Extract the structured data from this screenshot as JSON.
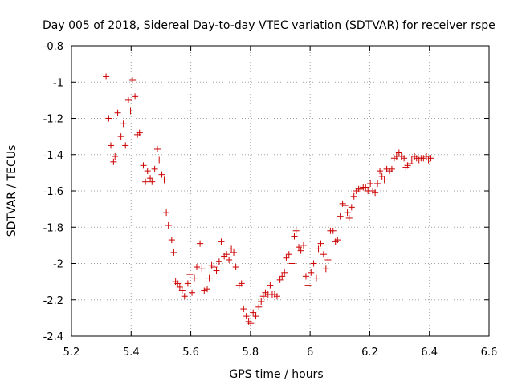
{
  "chart_data": {
    "type": "scatter",
    "title": "Day 005 of 2018, Sidereal Day-to-day VTEC variation (SDTVAR) for receiver rspe",
    "xlabel": "GPS time / hours",
    "ylabel": "SDTVAR / TECUs",
    "xlim": [
      5.2,
      6.6
    ],
    "ylim": [
      -2.4,
      -0.8
    ],
    "xticks": [
      5.2,
      5.4,
      5.6,
      5.8,
      6.0,
      6.2,
      6.4,
      6.6
    ],
    "xtick_labels": [
      "5.2",
      "5.4",
      "5.6",
      "5.8",
      "6",
      "6.2",
      "6.4",
      "6.6"
    ],
    "yticks": [
      -0.8,
      -1.0,
      -1.2,
      -1.4,
      -1.6,
      -1.8,
      -2.0,
      -2.2,
      -2.4
    ],
    "ytick_labels": [
      "-0.8",
      "-1",
      "-1.2",
      "-1.4",
      "-1.6",
      "-1.8",
      "-2",
      "-2.2",
      "-2.4"
    ],
    "grid": true,
    "marker": "+",
    "color": "#cc0000",
    "series": [
      {
        "name": "SDTVAR",
        "x": [
          5.316,
          5.325,
          5.332,
          5.341,
          5.346,
          5.355,
          5.366,
          5.374,
          5.381,
          5.391,
          5.398,
          5.405,
          5.413,
          5.421,
          5.428,
          5.441,
          5.448,
          5.455,
          5.464,
          5.47,
          5.479,
          5.488,
          5.494,
          5.503,
          5.511,
          5.518,
          5.525,
          5.536,
          5.543,
          5.549,
          5.556,
          5.563,
          5.571,
          5.579,
          5.59,
          5.597,
          5.604,
          5.612,
          5.62,
          5.631,
          5.637,
          5.645,
          5.655,
          5.662,
          5.67,
          5.678,
          5.686,
          5.695,
          5.702,
          5.712,
          5.72,
          5.728,
          5.736,
          5.744,
          5.751,
          5.762,
          5.77,
          5.777,
          5.786,
          5.794,
          5.801,
          5.809,
          5.818,
          5.828,
          5.836,
          5.843,
          5.85,
          5.859,
          5.866,
          5.873,
          5.881,
          5.889,
          5.899,
          5.906,
          5.914,
          5.92,
          5.929,
          5.939,
          5.947,
          5.953,
          5.962,
          5.969,
          5.978,
          5.986,
          5.993,
          6.003,
          6.012,
          6.021,
          6.028,
          6.036,
          6.045,
          6.053,
          6.06,
          6.068,
          6.077,
          6.085,
          6.092,
          6.101,
          6.109,
          6.117,
          6.125,
          6.131,
          6.139,
          6.147,
          6.155,
          6.163,
          6.17,
          6.178,
          6.186,
          6.194,
          6.202,
          6.21,
          6.218,
          6.226,
          6.234,
          6.241,
          6.249,
          6.257,
          6.266,
          6.274,
          6.282,
          6.29,
          6.298,
          6.306,
          6.315,
          6.321,
          6.327,
          6.335,
          6.341,
          6.35,
          6.357,
          6.365,
          6.372,
          6.38,
          6.39,
          6.397,
          6.405
        ],
        "y": [
          -0.97,
          -1.2,
          -1.35,
          -1.44,
          -1.41,
          -1.17,
          -1.3,
          -1.23,
          -1.35,
          -1.1,
          -1.16,
          -0.99,
          -1.08,
          -1.29,
          -1.28,
          -1.46,
          -1.55,
          -1.49,
          -1.53,
          -1.55,
          -1.48,
          -1.37,
          -1.43,
          -1.51,
          -1.54,
          -1.72,
          -1.79,
          -1.87,
          -1.94,
          -2.1,
          -2.11,
          -2.13,
          -2.15,
          -2.18,
          -2.11,
          -2.06,
          -2.16,
          -2.08,
          -2.02,
          -1.89,
          -2.03,
          -2.15,
          -2.14,
          -2.08,
          -2.01,
          -2.02,
          -2.04,
          -1.99,
          -1.88,
          -1.96,
          -1.95,
          -1.98,
          -1.92,
          -1.94,
          -2.02,
          -2.12,
          -2.11,
          -2.25,
          -2.29,
          -2.32,
          -2.33,
          -2.27,
          -2.29,
          -2.24,
          -2.21,
          -2.18,
          -2.16,
          -2.17,
          -2.12,
          -2.17,
          -2.17,
          -2.18,
          -2.09,
          -2.07,
          -2.05,
          -1.97,
          -1.95,
          -2.0,
          -1.85,
          -1.82,
          -1.91,
          -1.93,
          -1.9,
          -2.07,
          -2.12,
          -2.05,
          -2.0,
          -2.08,
          -1.92,
          -1.89,
          -1.95,
          -2.03,
          -1.98,
          -1.82,
          -1.82,
          -1.88,
          -1.87,
          -1.74,
          -1.67,
          -1.68,
          -1.72,
          -1.75,
          -1.69,
          -1.63,
          -1.6,
          -1.59,
          -1.59,
          -1.58,
          -1.58,
          -1.6,
          -1.56,
          -1.6,
          -1.61,
          -1.56,
          -1.49,
          -1.52,
          -1.54,
          -1.48,
          -1.49,
          -1.48,
          -1.42,
          -1.41,
          -1.39,
          -1.41,
          -1.42,
          -1.47,
          -1.46,
          -1.45,
          -1.43,
          -1.41,
          -1.42,
          -1.43,
          -1.42,
          -1.42,
          -1.41,
          -1.43,
          -1.42
        ]
      }
    ]
  }
}
